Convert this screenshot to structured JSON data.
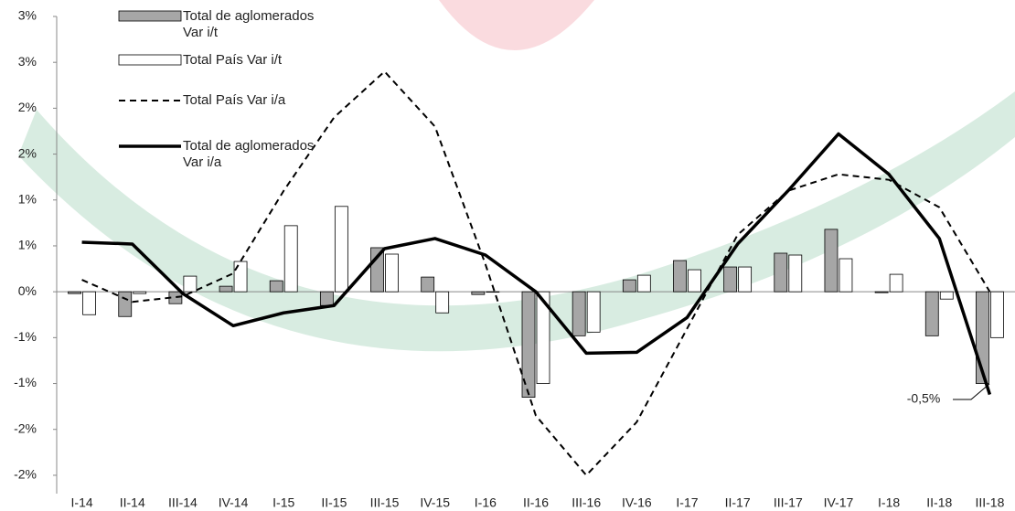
{
  "chart_data": {
    "type": "combo",
    "categories": [
      "I-14",
      "II-14",
      "III-14",
      "IV-14",
      "I-15",
      "II-15",
      "III-15",
      "IV-15",
      "I-16",
      "II-16",
      "III-16",
      "IV-16",
      "I-17",
      "II-17",
      "III-17",
      "IV-17",
      "I-18",
      "II-18",
      "III-18"
    ],
    "series": [
      {
        "name": "Total de aglomerados Var i/t",
        "type": "bar",
        "color": "#a6a6a6",
        "values": [
          -0.02,
          -0.27,
          -0.13,
          0.06,
          0.12,
          -0.15,
          0.48,
          0.16,
          -0.03,
          -1.15,
          -0.48,
          0.13,
          0.34,
          0.27,
          0.42,
          0.68,
          -0.01,
          -0.48,
          -1.0
        ]
      },
      {
        "name": "Total País Var i/t",
        "type": "bar",
        "color": "#ffffff",
        "values": [
          -0.25,
          -0.02,
          0.17,
          0.33,
          0.72,
          0.93,
          0.41,
          -0.23,
          0.0,
          -1.0,
          -0.44,
          0.18,
          0.24,
          0.27,
          0.4,
          0.36,
          0.19,
          -0.08,
          -0.5
        ]
      },
      {
        "name": "Total País Var i/a",
        "type": "line",
        "dashed": true,
        "color": "#000000",
        "values": [
          0.13,
          -0.11,
          -0.05,
          0.2,
          1.1,
          1.9,
          2.4,
          1.8,
          0.3,
          -1.35,
          -2.0,
          -1.42,
          -0.4,
          0.62,
          1.1,
          1.28,
          1.22,
          0.92,
          0.0
        ]
      },
      {
        "name": "Total de aglomerados Var i/a",
        "type": "line",
        "dashed": false,
        "color": "#000000",
        "values": [
          0.54,
          0.52,
          -0.02,
          -0.37,
          -0.23,
          -0.15,
          0.47,
          0.58,
          0.4,
          0.0,
          -0.67,
          -0.66,
          -0.28,
          0.52,
          1.1,
          1.72,
          1.28,
          0.58,
          -1.12
        ]
      }
    ],
    "ylim": [
      -2.2,
      3.0
    ],
    "yticks": [
      {
        "value": 3.0,
        "label": "3%"
      },
      {
        "value": 2.5,
        "label": "3%"
      },
      {
        "value": 2.0,
        "label": "2%"
      },
      {
        "value": 1.5,
        "label": "2%"
      },
      {
        "value": 1.0,
        "label": "1%"
      },
      {
        "value": 0.5,
        "label": "1%"
      },
      {
        "value": 0,
        "label": "0%"
      },
      {
        "value": -0.5,
        "label": "-1%"
      },
      {
        "value": -1.0,
        "label": "-1%"
      },
      {
        "value": -1.5,
        "label": "-2%"
      },
      {
        "value": -2.0,
        "label": "-2%"
      }
    ],
    "annotation": "-0,5%"
  }
}
